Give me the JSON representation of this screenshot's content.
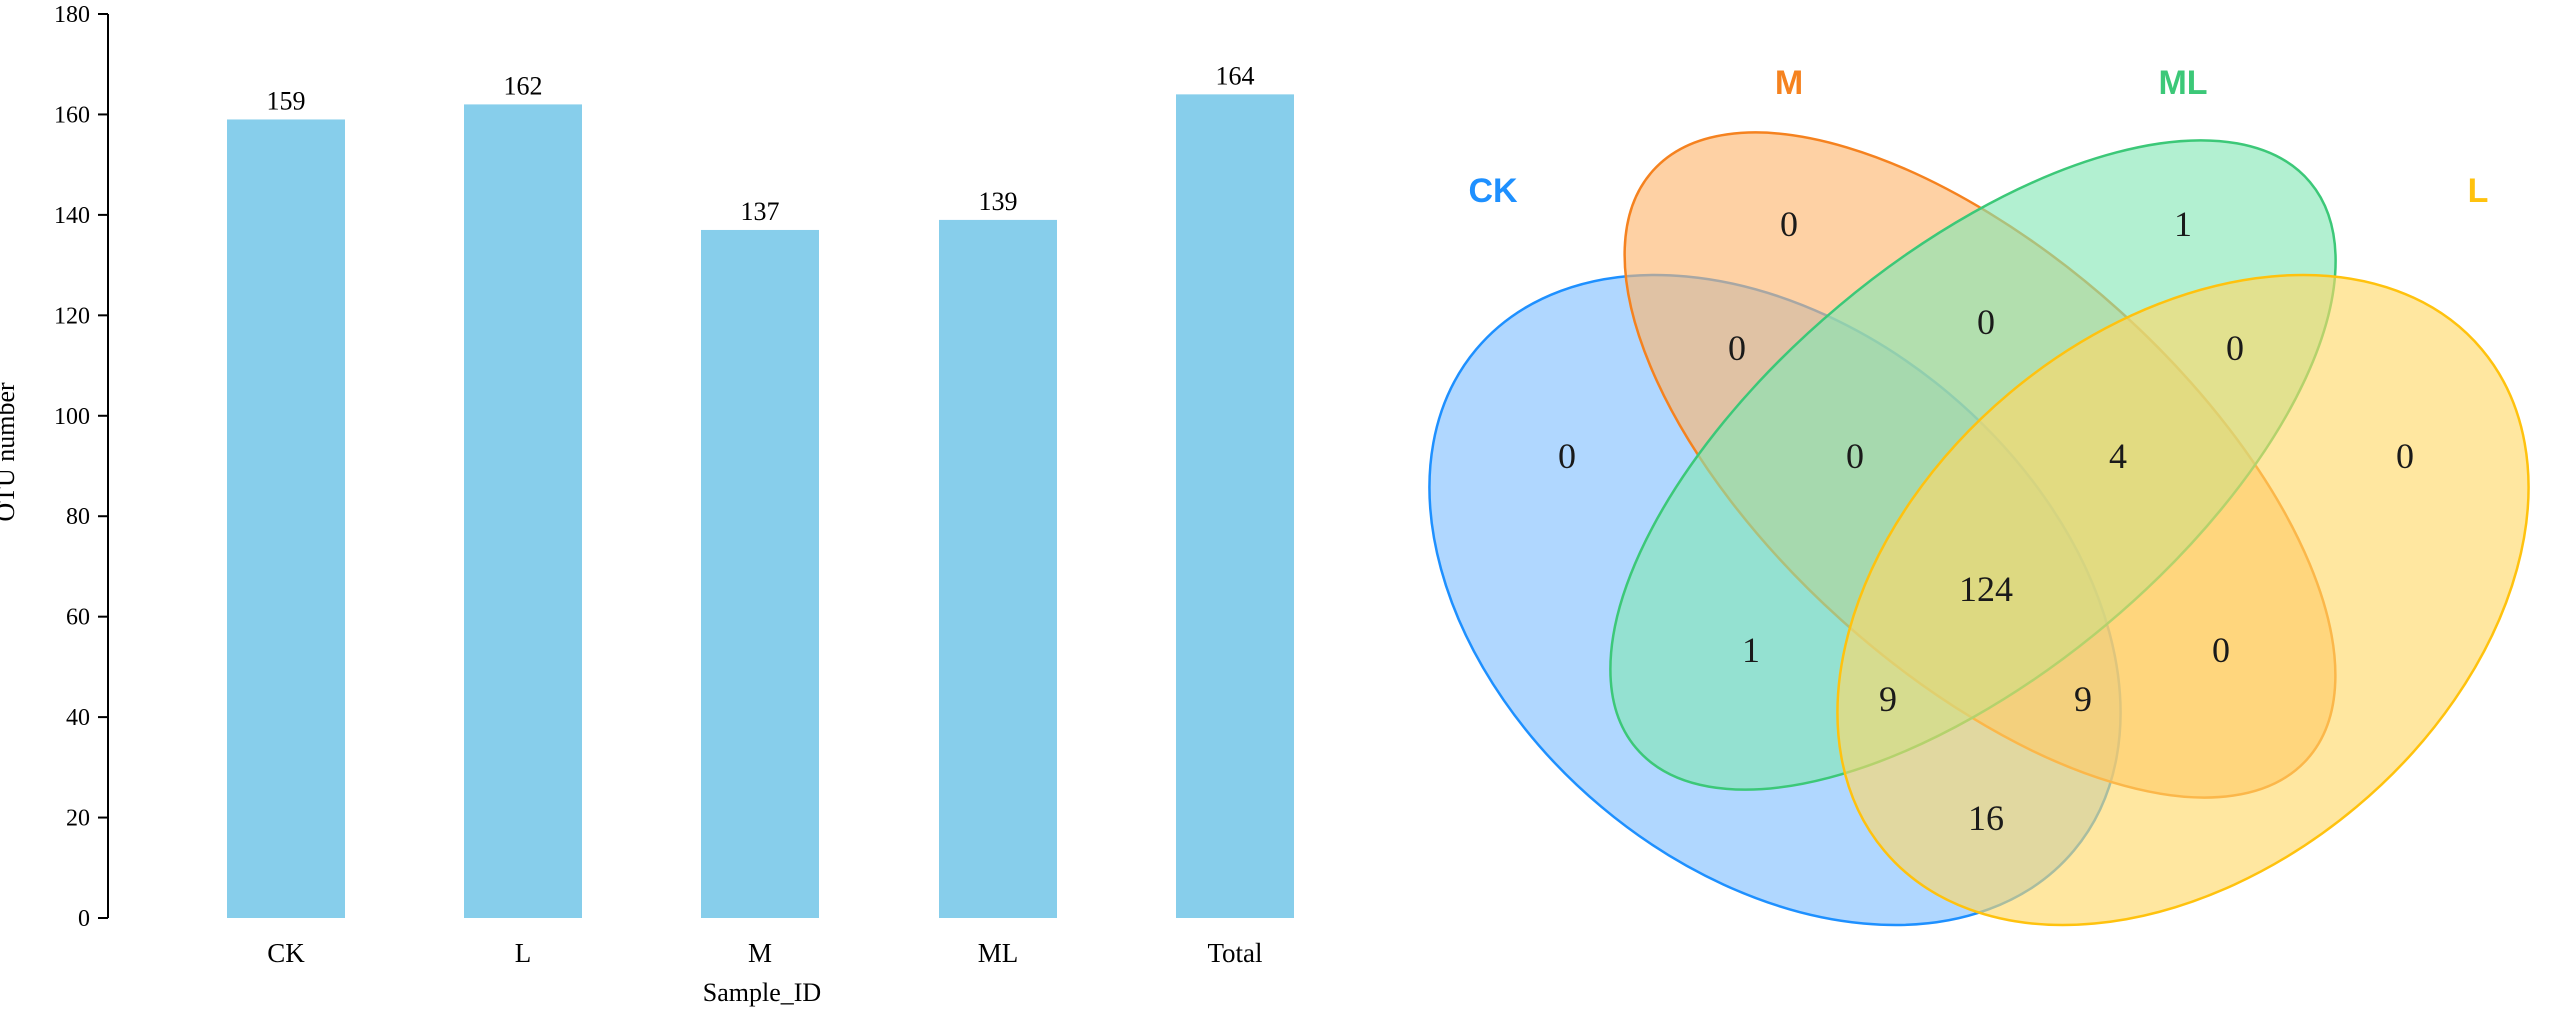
{
  "chart_data": [
    {
      "type": "bar",
      "categories": [
        "CK",
        "L",
        "M",
        "ML",
        "Total"
      ],
      "values": [
        159,
        162,
        137,
        139,
        164
      ],
      "data_labels": [
        "159",
        "162",
        "137",
        "139",
        "164"
      ],
      "xlabel": "Sample_ID",
      "ylabel": "OTU number",
      "ylim": [
        0,
        180
      ],
      "yticks": [
        "0",
        "20",
        "40",
        "60",
        "80",
        "100",
        "120",
        "140",
        "160",
        "180"
      ],
      "grid": false,
      "bar_color": "#87CEEB"
    },
    {
      "type": "venn",
      "sets": [
        {
          "name": "CK",
          "color": "#1E90FF",
          "fill": "#7FBFFF"
        },
        {
          "name": "M",
          "color": "#F5821F",
          "fill": "#FDB46C"
        },
        {
          "name": "ML",
          "color": "#3CC878",
          "fill": "#82E6B4"
        },
        {
          "name": "L",
          "color": "#FFC20E",
          "fill": "#FFD966"
        }
      ],
      "regions": [
        {
          "region": "CK only",
          "value": 0
        },
        {
          "region": "M only",
          "value": 0
        },
        {
          "region": "ML only",
          "value": 1
        },
        {
          "region": "L only",
          "value": 0
        },
        {
          "region": "CK&M",
          "value": 0
        },
        {
          "region": "M&ML",
          "value": 0
        },
        {
          "region": "ML&L",
          "value": 0
        },
        {
          "region": "CK&M&ML",
          "value": 0
        },
        {
          "region": "M&ML&L",
          "value": 4
        },
        {
          "region": "CK&M&ML&L",
          "value": 124
        },
        {
          "region": "CK&ML",
          "value": 1
        },
        {
          "region": "M&L",
          "value": 0
        },
        {
          "region": "CK&ML&L",
          "value": 9
        },
        {
          "region": "CK&M&L",
          "value": 9
        },
        {
          "region": "CK&L",
          "value": 16
        }
      ]
    }
  ]
}
